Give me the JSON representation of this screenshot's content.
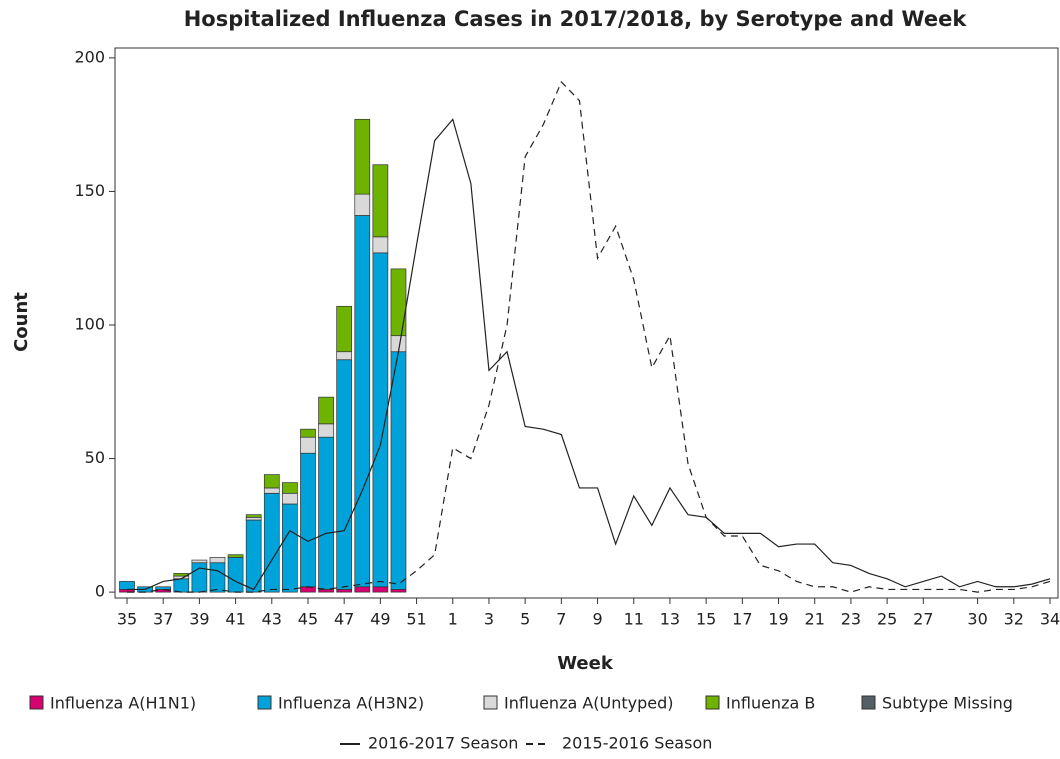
{
  "chart_data": {
    "type": "bar",
    "stacked": true,
    "title": "Hospitalized Influenza Cases in 2017/2018, by Serotype and Week",
    "x_label": "Week",
    "y_label": "Count",
    "categories": [
      35,
      null,
      37,
      null,
      39,
      null,
      41,
      null,
      43,
      null,
      45,
      null,
      47,
      null,
      49,
      null,
      51,
      null,
      1,
      null,
      3,
      null,
      5,
      null,
      7,
      null,
      9,
      null,
      11,
      null,
      13,
      null,
      15,
      null,
      17,
      null,
      19,
      null,
      21,
      null,
      23,
      null,
      25,
      null,
      27,
      null,
      null,
      30,
      null,
      32,
      null,
      34
    ],
    "ylim": [
      -2.2,
      203.7
    ],
    "yticks": [
      0,
      50,
      100,
      150,
      200
    ],
    "series": [
      {
        "name": "Influenza A(H1N1)",
        "type": "bar",
        "color": "#d6006f",
        "values": [
          1,
          0,
          1,
          0,
          0,
          0,
          0,
          0,
          0,
          0,
          2,
          1,
          1,
          2,
          2,
          1,
          null,
          null,
          null,
          null,
          null,
          null,
          null,
          null,
          null,
          null,
          null,
          null,
          null,
          null,
          null,
          null,
          null,
          null,
          null,
          null,
          null,
          null,
          null,
          null,
          null,
          null,
          null,
          null,
          null,
          null,
          null,
          null,
          null,
          null,
          null,
          null
        ]
      },
      {
        "name": "Influenza A(H3N2)",
        "type": "bar",
        "color": "#00a3d9",
        "values": [
          3,
          2,
          1,
          5,
          11,
          11,
          13,
          27,
          37,
          33,
          50,
          57,
          86,
          139,
          125,
          89,
          null,
          null,
          null,
          null,
          null,
          null,
          null,
          null,
          null,
          null,
          null,
          null,
          null,
          null,
          null,
          null,
          null,
          null,
          null,
          null,
          null,
          null,
          null,
          null,
          null,
          null,
          null,
          null,
          null,
          null,
          null,
          null,
          null,
          null,
          null,
          null
        ]
      },
      {
        "name": "Influenza A(Untyped)",
        "type": "bar",
        "color": "#d9d9d9",
        "values": [
          0,
          0,
          0,
          1,
          1,
          2,
          0,
          1,
          2,
          4,
          6,
          5,
          3,
          8,
          6,
          6,
          null,
          null,
          null,
          null,
          null,
          null,
          null,
          null,
          null,
          null,
          null,
          null,
          null,
          null,
          null,
          null,
          null,
          null,
          null,
          null,
          null,
          null,
          null,
          null,
          null,
          null,
          null,
          null,
          null,
          null,
          null,
          null,
          null,
          null,
          null,
          null
        ]
      },
      {
        "name": "Influenza B",
        "type": "bar",
        "color": "#6db300",
        "values": [
          0,
          0,
          0,
          1,
          0,
          0,
          1,
          1,
          5,
          4,
          3,
          10,
          17,
          28,
          27,
          25,
          null,
          null,
          null,
          null,
          null,
          null,
          null,
          null,
          null,
          null,
          null,
          null,
          null,
          null,
          null,
          null,
          null,
          null,
          null,
          null,
          null,
          null,
          null,
          null,
          null,
          null,
          null,
          null,
          null,
          null,
          null,
          null,
          null,
          null,
          null,
          null
        ]
      },
      {
        "name": "Subtype Missing",
        "type": "bar",
        "color": "#555f66",
        "values": [
          0,
          0,
          0,
          0,
          0,
          0,
          0,
          0,
          0,
          0,
          0,
          0,
          0,
          0,
          0,
          0,
          null,
          null,
          null,
          null,
          null,
          null,
          null,
          null,
          null,
          null,
          null,
          null,
          null,
          null,
          null,
          null,
          null,
          null,
          null,
          null,
          null,
          null,
          null,
          null,
          null,
          null,
          null,
          null,
          null,
          null,
          null,
          null,
          null,
          null,
          null,
          null
        ]
      },
      {
        "name": "2016-2017 Season",
        "type": "line",
        "dashed": false,
        "color": "#222222",
        "values": [
          1,
          1,
          4,
          5,
          9,
          8,
          4,
          1,
          12,
          23,
          19,
          22,
          23,
          38,
          55,
          90,
          130,
          169,
          177,
          153,
          83,
          90,
          62,
          61,
          59,
          39,
          39,
          18,
          36,
          25,
          39,
          29,
          28,
          22,
          22,
          22,
          17,
          18,
          18,
          11,
          10,
          7,
          5,
          2,
          4,
          6,
          2,
          4,
          2,
          2,
          3,
          5
        ]
      },
      {
        "name": "2015-2016 Season",
        "type": "line",
        "dashed": true,
        "color": "#222222",
        "values": [
          0,
          0,
          1,
          0,
          0,
          1,
          0,
          0,
          1,
          1,
          2,
          1,
          2,
          3,
          4,
          3,
          8,
          14,
          54,
          50,
          70,
          100,
          163,
          175,
          191,
          184,
          125,
          137,
          117,
          84,
          96,
          48,
          28,
          21,
          21,
          10,
          8,
          4,
          2,
          2,
          0,
          2,
          1,
          1,
          1,
          1,
          1,
          0,
          1,
          1,
          2,
          4
        ]
      }
    ]
  }
}
